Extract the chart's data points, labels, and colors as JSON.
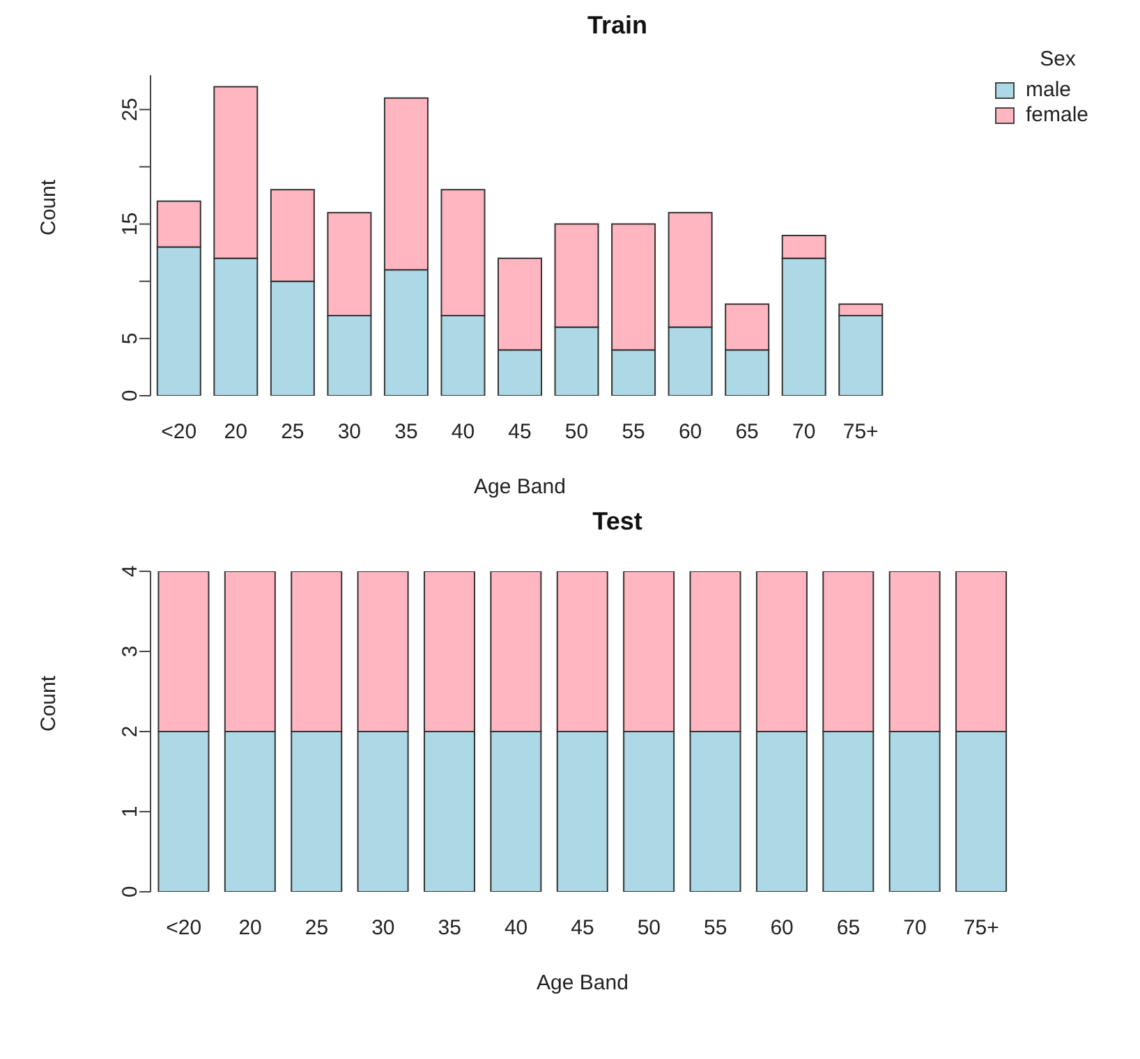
{
  "chart_data": [
    {
      "type": "bar",
      "stacked": true,
      "title": "Train",
      "xlabel": "Age Band",
      "ylabel": "Count",
      "legend": "top right",
      "legend_title": "Sex",
      "categories": [
        "<20",
        "20",
        "25",
        "30",
        "35",
        "40",
        "45",
        "50",
        "55",
        "60",
        "65",
        "70",
        "75+"
      ],
      "series": [
        {
          "name": "male",
          "color": "#add8e6",
          "values": [
            13,
            12,
            10,
            7,
            11,
            7,
            4,
            6,
            4,
            6,
            4,
            12,
            7
          ]
        },
        {
          "name": "female",
          "color": "#ffb6c1",
          "values": [
            4,
            15,
            8,
            9,
            15,
            11,
            8,
            9,
            11,
            10,
            4,
            2,
            1
          ]
        }
      ],
      "ylim": [
        0,
        28
      ],
      "yticks": [
        0,
        5,
        {
          "value": 10,
          "label": null
        },
        15,
        {
          "value": 20,
          "label": null
        },
        25
      ],
      "grid": false
    },
    {
      "type": "bar",
      "stacked": true,
      "title": "Test",
      "xlabel": "Age Band",
      "ylabel": "Count",
      "categories": [
        "<20",
        "20",
        "25",
        "30",
        "35",
        "40",
        "45",
        "50",
        "55",
        "60",
        "65",
        "70",
        "75+"
      ],
      "series": [
        {
          "color": "#add8e6",
          "values": [
            2,
            2,
            2,
            2,
            2,
            2,
            2,
            2,
            2,
            2,
            2,
            2,
            2
          ]
        },
        {
          "color": "#ffb6c1",
          "values": [
            2,
            2,
            2,
            2,
            2,
            2,
            2,
            2,
            2,
            2,
            2,
            2,
            2
          ]
        }
      ],
      "ylim": [
        0,
        4
      ],
      "yticks": [
        0,
        1,
        2,
        3,
        4
      ],
      "grid": false
    }
  ]
}
